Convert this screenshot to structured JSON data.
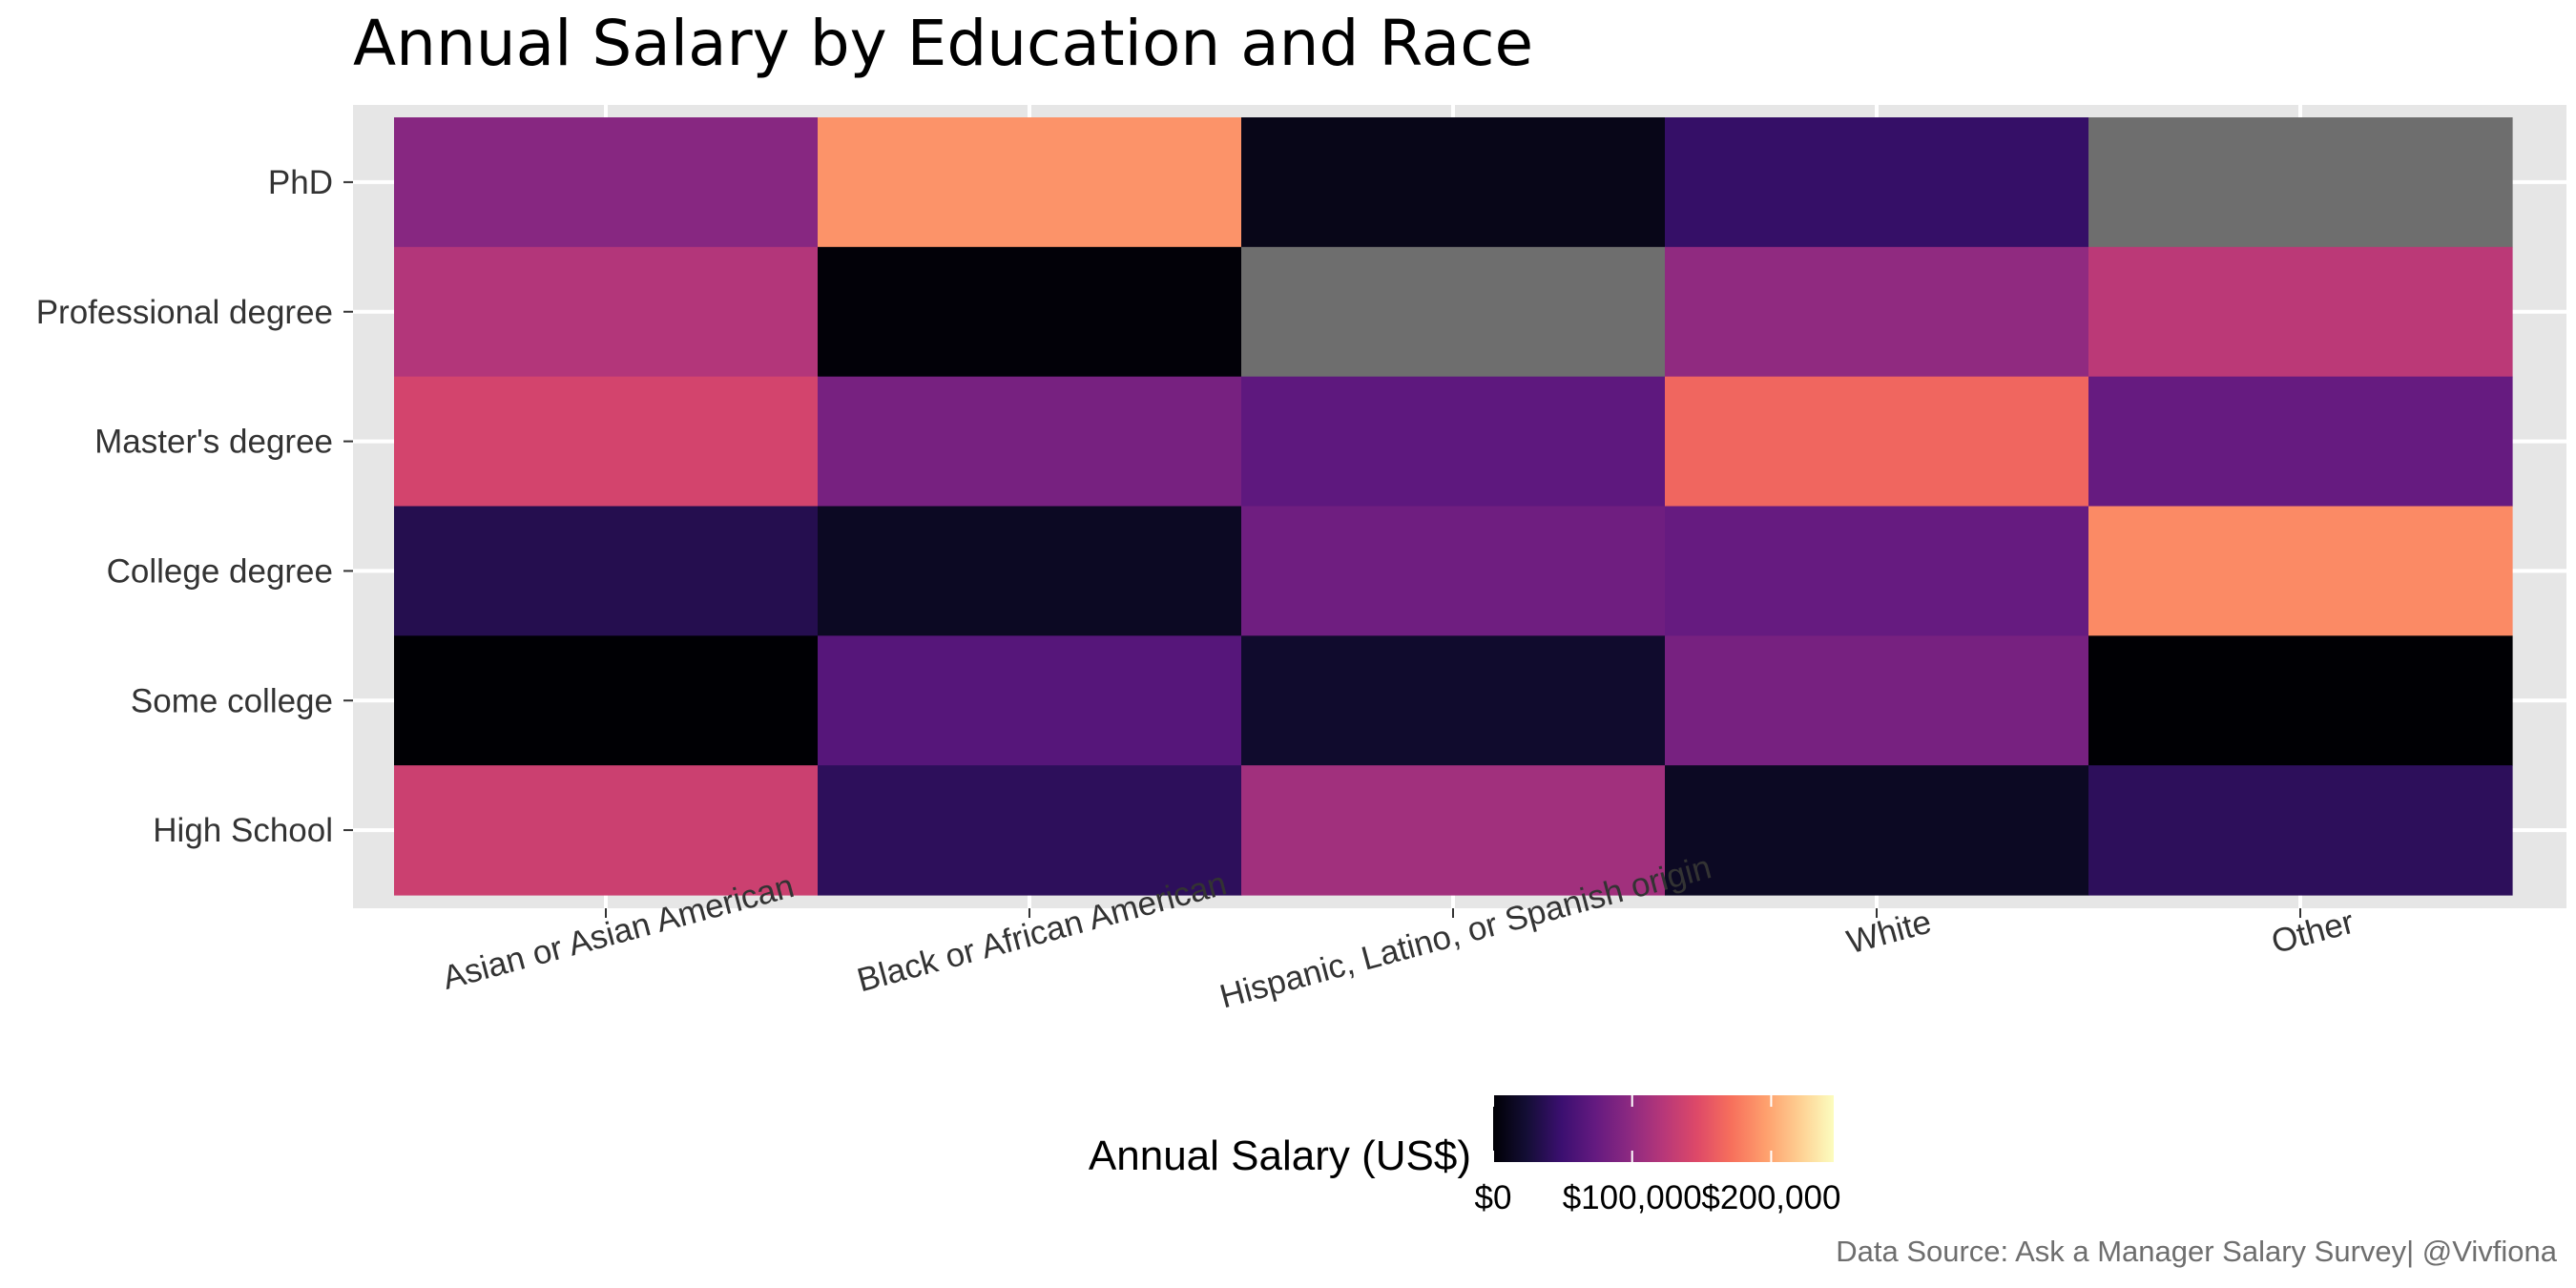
{
  "chart_data": {
    "type": "heatmap",
    "title": "Annual Salary by Education and Race",
    "x_categories": [
      "Asian or Asian American",
      "Black or African American",
      "Hispanic, Latino, or Spanish origin",
      "White",
      "Other"
    ],
    "y_categories": [
      "PhD",
      "Professional degree",
      "Master's degree",
      "College degree",
      "Some college",
      "High School"
    ],
    "values": [
      [
        95000,
        190000,
        10000,
        45000,
        null
      ],
      [
        120000,
        2000,
        null,
        100000,
        125000
      ],
      [
        140000,
        85000,
        70000,
        165000,
        75000
      ],
      [
        35000,
        15000,
        80000,
        75000,
        185000
      ],
      [
        0,
        65000,
        20000,
        85000,
        0
      ],
      [
        135000,
        40000,
        110000,
        15000,
        40000
      ]
    ],
    "na_color": "#6e6e6e",
    "colorscale": "magma",
    "legend": {
      "title": "Annual Salary (US$)",
      "position": "bottom",
      "range": [
        0,
        245000
      ],
      "ticks": [
        {
          "value": 0,
          "label": "$0"
        },
        {
          "value": 100000,
          "label": "$100,000"
        },
        {
          "value": 200000,
          "label": "$200,000"
        }
      ]
    },
    "caption": "Data Source: Ask a Manager Salary Survey| @Vivfiona",
    "grid": true,
    "panel_background": "#e6e6e6"
  }
}
